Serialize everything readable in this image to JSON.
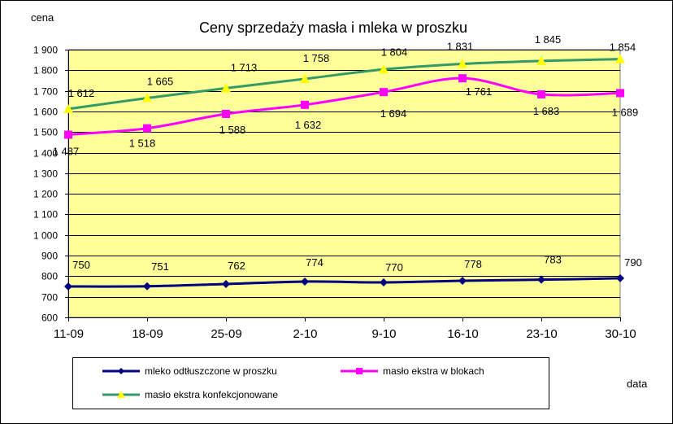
{
  "chart_data": {
    "type": "line",
    "title": "Ceny sprzedaży masła i mleka w proszku",
    "ylabel": "cena",
    "xlabel": "data",
    "categories": [
      "11-09",
      "18-09",
      "25-09",
      "2-10",
      "9-10",
      "16-10",
      "23-10",
      "30-10"
    ],
    "ylim": [
      600,
      1900
    ],
    "ytick_step": 100,
    "ytick_labels": [
      "600",
      "700",
      "800",
      "900",
      "1 000",
      "1 100",
      "1 200",
      "1 300",
      "1 400",
      "1 500",
      "1 600",
      "1 700",
      "1 800",
      "1 900"
    ],
    "plot_background": "#FFFF99",
    "grid": "horizontal",
    "legend_position": "bottom",
    "series": [
      {
        "name": "mleko odtłuszczone w proszku",
        "values": [
          750,
          751,
          762,
          774,
          770,
          778,
          783,
          790
        ],
        "labels": [
          "750",
          "751",
          "762",
          "774",
          "770",
          "778",
          "783",
          "790"
        ],
        "color": "#000080",
        "marker": "diamond"
      },
      {
        "name": "masło ekstra w blokach",
        "values": [
          1487,
          1518,
          1588,
          1632,
          1694,
          1761,
          1683,
          1689
        ],
        "labels": [
          "1 487",
          "1 518",
          "1 588",
          "1 632",
          "1 694",
          "1 761",
          "1 683",
          "1 689"
        ],
        "color": "#FF00FF",
        "marker": "square"
      },
      {
        "name": "masło ekstra konfekcjonowane",
        "values": [
          1612,
          1665,
          1713,
          1758,
          1804,
          1831,
          1845,
          1854
        ],
        "labels": [
          "1 612",
          "1 665",
          "1 713",
          "1 758",
          "1 804",
          "1 831",
          "1 845",
          "1 854"
        ],
        "color": "#339966",
        "marker": "triangle",
        "marker_color": "#FFFF00"
      }
    ]
  }
}
